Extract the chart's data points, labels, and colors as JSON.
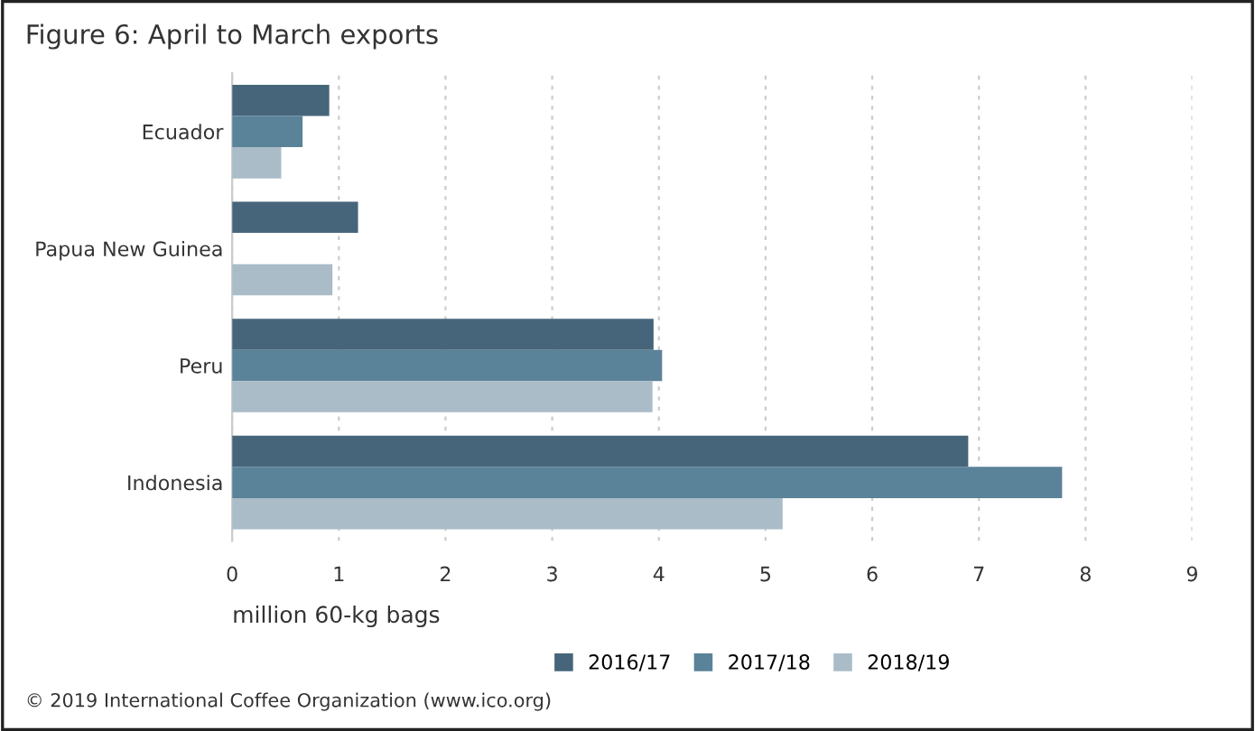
{
  "chart_data": {
    "type": "bar",
    "orientation": "horizontal",
    "title": "Figure 6: April to March exports",
    "categories": [
      "Ecuador",
      "Papua New Guinea",
      "Peru",
      "Indonesia"
    ],
    "series": [
      {
        "name": "2016/17",
        "color": "#46657a",
        "values": [
          0.91,
          1.18,
          3.95,
          6.9
        ]
      },
      {
        "name": "2017/18",
        "color": "#5a8299",
        "values": [
          0.66,
          null,
          4.03,
          7.78
        ]
      },
      {
        "name": "2018/19",
        "color": "#a9bcc7",
        "values": [
          0.46,
          0.94,
          3.94,
          5.16
        ]
      }
    ],
    "xlabel": "million 60-kg bags",
    "xlim": [
      0,
      9
    ],
    "xticks": [
      0,
      1,
      2,
      3,
      4,
      5,
      6,
      7,
      8,
      9
    ],
    "grid": "x",
    "legend": "bottom",
    "annotations": [
      "© 2019 International Coffee Organization (www.ico.org)"
    ]
  }
}
